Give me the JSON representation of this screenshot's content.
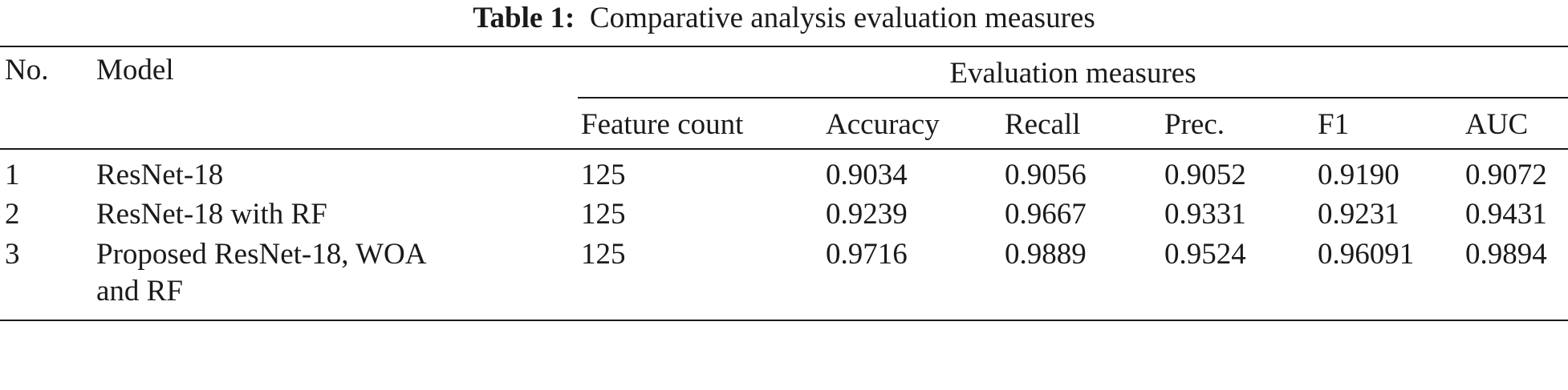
{
  "caption": {
    "label": "Table 1:",
    "text": "Comparative analysis evaluation measures"
  },
  "table": {
    "headers": {
      "no": "No.",
      "model": "Model",
      "group": "Evaluation measures",
      "feature_count": "Feature count",
      "accuracy": "Accuracy",
      "recall": "Recall",
      "precision": "Prec.",
      "f1": "F1",
      "auc": "AUC"
    },
    "rows": [
      {
        "no": "1",
        "model_line1": "ResNet-18",
        "model_line2": "",
        "feature_count": "125",
        "accuracy": "0.9034",
        "recall": "0.9056",
        "precision": "0.9052",
        "f1": "0.9190",
        "auc": "0.9072"
      },
      {
        "no": "2",
        "model_line1": "ResNet-18 with RF",
        "model_line2": "",
        "feature_count": "125",
        "accuracy": "0.9239",
        "recall": "0.9667",
        "precision": "0.9331",
        "f1": "0.9231",
        "auc": "0.9431"
      },
      {
        "no": "3",
        "model_line1": "Proposed ResNet-18, WOA",
        "model_line2": "and RF",
        "feature_count": "125",
        "accuracy": "0.9716",
        "recall": "0.9889",
        "precision": "0.9524",
        "f1": "0.96091",
        "auc": "0.9894"
      }
    ]
  }
}
